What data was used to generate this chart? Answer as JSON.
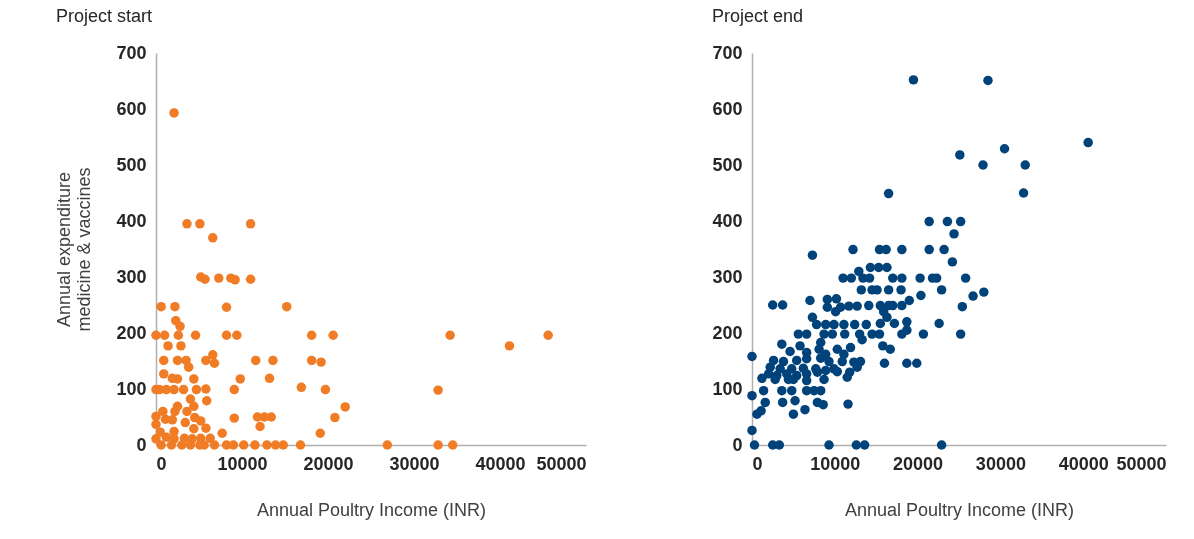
{
  "chart_data": [
    {
      "type": "scatter",
      "title": "Project start",
      "xlabel": "Annual Poultry Income (INR)",
      "ylabel": "Annual expenditure\nmedicine & vaccines",
      "color": "#f07c26",
      "marker": "circle",
      "grid": false,
      "xlim": [
        0,
        50000
      ],
      "xticks": [
        0,
        10000,
        20000,
        30000,
        40000,
        50000
      ],
      "ylim": [
        0,
        700
      ],
      "yticks": [
        0,
        100,
        200,
        300,
        400,
        500,
        600,
        700
      ],
      "x": [
        2100,
        3600,
        5100,
        11000,
        6600,
        5200,
        5700,
        7300,
        8700,
        9200,
        11000,
        600,
        2200,
        8200,
        15200,
        2300,
        2800,
        0,
        1000,
        2600,
        4600,
        8200,
        9400,
        18100,
        20600,
        34200,
        45600,
        41100,
        1400,
        2900,
        900,
        2500,
        3500,
        3800,
        5800,
        6600,
        6800,
        11600,
        13600,
        18100,
        19200,
        900,
        1900,
        2500,
        4400,
        9800,
        13200,
        0,
        400,
        1200,
        2100,
        3200,
        4700,
        5800,
        9100,
        16900,
        19700,
        32800,
        4000,
        5900,
        4400,
        2500,
        22000,
        800,
        2200,
        3600,
        0,
        9100,
        11800,
        12600,
        13400,
        20800,
        4500,
        5200,
        1100,
        1900,
        3400,
        12100,
        5800,
        0,
        500,
        2100,
        4400,
        7700,
        19100,
        0,
        1200,
        2100,
        3300,
        4200,
        5200,
        6300,
        600,
        1800,
        3000,
        4000,
        5100,
        5600,
        6800,
        8200,
        9000,
        10200,
        11500,
        12900,
        13900,
        14800,
        16800,
        26900,
        32800,
        34500
      ],
      "values": [
        593,
        395,
        395,
        395,
        370,
        300,
        296,
        298,
        298,
        295,
        296,
        247,
        247,
        246,
        247,
        222,
        212,
        196,
        196,
        196,
        196,
        196,
        196,
        196,
        196,
        196,
        196,
        177,
        177,
        177,
        151,
        151,
        151,
        139,
        151,
        161,
        146,
        151,
        151,
        151,
        148,
        127,
        119,
        118,
        118,
        118,
        119,
        99,
        99,
        99,
        99,
        99,
        99,
        100,
        99,
        103,
        99,
        98,
        82,
        79,
        69,
        69,
        68,
        60,
        60,
        60,
        51,
        48,
        50,
        50,
        50,
        49,
        49,
        43,
        46,
        45,
        40,
        33,
        30,
        37,
        23,
        24,
        29,
        21,
        21,
        11,
        14,
        11,
        12,
        11,
        12,
        12,
        0,
        0,
        0,
        0,
        0,
        0,
        0,
        0,
        0,
        0,
        0,
        0,
        0,
        0,
        0,
        0,
        0,
        0
      ]
    },
    {
      "type": "scatter",
      "title": "Project end",
      "xlabel": "Annual Poultry Income (INR)",
      "color": "#00427a",
      "marker": "circle",
      "grid": false,
      "xlim": [
        0,
        50000
      ],
      "xticks": [
        0,
        10000,
        20000,
        30000,
        40000,
        50000
      ],
      "ylim": [
        0,
        700
      ],
      "yticks": [
        0,
        100,
        200,
        300,
        400,
        500,
        600,
        700
      ],
      "x": [
        19500,
        28500,
        40600,
        30500,
        25100,
        27900,
        33000,
        16500,
        32800,
        21400,
        23600,
        25200,
        24400,
        7300,
        12200,
        15400,
        16200,
        18100,
        21400,
        23200,
        24200,
        14300,
        15300,
        16300,
        12900,
        11000,
        12000,
        13400,
        14200,
        17000,
        18100,
        20300,
        21800,
        22300,
        25800,
        13200,
        14500,
        15100,
        16500,
        18000,
        22900,
        20400,
        26700,
        28000,
        2500,
        3700,
        7000,
        9100,
        10200,
        9100,
        10700,
        11700,
        12700,
        14100,
        15500,
        16500,
        17000,
        18100,
        19000,
        25400,
        10100,
        15900,
        7300,
        16300,
        7800,
        8900,
        9900,
        11100,
        12400,
        13800,
        15500,
        17200,
        18700,
        22600,
        5600,
        6600,
        8700,
        9700,
        11200,
        13000,
        14500,
        15400,
        18100,
        18700,
        20700,
        25200,
        13300,
        8300,
        3600,
        5800,
        8100,
        10300,
        11900,
        15800,
        16700,
        4600,
        6600,
        8900,
        11100,
        0,
        2600,
        3800,
        5400,
        6600,
        8300,
        9300,
        10900,
        12300,
        13100,
        16000,
        18700,
        19900,
        2200,
        3400,
        4800,
        6200,
        7700,
        8900,
        9900,
        12700,
        2000,
        3000,
        4200,
        5400,
        6600,
        7900,
        10300,
        11800,
        1200,
        2800,
        4400,
        5000,
        6600,
        8700,
        11500,
        1400,
        3600,
        4800,
        6600,
        7500,
        8300,
        0,
        1600,
        3700,
        5200,
        7900,
        8600,
        11600,
        600,
        1100,
        5000,
        6400,
        0,
        300,
        2500,
        3300,
        9300,
        12600,
        13600,
        22900
      ],
      "values": [
        652,
        651,
        540,
        529,
        518,
        500,
        500,
        449,
        450,
        399,
        399,
        399,
        377,
        339,
        349,
        349,
        349,
        349,
        349,
        349,
        327,
        317,
        317,
        317,
        310,
        298,
        298,
        298,
        298,
        298,
        298,
        298,
        298,
        298,
        298,
        277,
        277,
        277,
        277,
        277,
        277,
        267,
        266,
        273,
        250,
        250,
        258,
        260,
        261,
        246,
        246,
        248,
        248,
        249,
        249,
        249,
        249,
        249,
        258,
        247,
        238,
        238,
        228,
        228,
        215,
        215,
        215,
        215,
        215,
        215,
        217,
        217,
        220,
        217,
        198,
        198,
        198,
        198,
        198,
        198,
        198,
        198,
        198,
        205,
        198,
        198,
        188,
        183,
        180,
        177,
        171,
        171,
        174,
        177,
        171,
        167,
        165,
        162,
        162,
        158,
        151,
        149,
        151,
        154,
        155,
        149,
        149,
        148,
        149,
        146,
        146,
        146,
        139,
        136,
        136,
        137,
        136,
        133,
        136,
        139,
        127,
        124,
        127,
        124,
        127,
        130,
        131,
        130,
        119,
        117,
        117,
        117,
        115,
        117,
        121,
        97,
        97,
        97,
        97,
        97,
        97,
        88,
        76,
        76,
        79,
        76,
        72,
        73,
        55,
        61,
        55,
        63,
        26,
        0,
        0,
        0,
        0,
        0,
        0,
        0
      ]
    }
  ]
}
